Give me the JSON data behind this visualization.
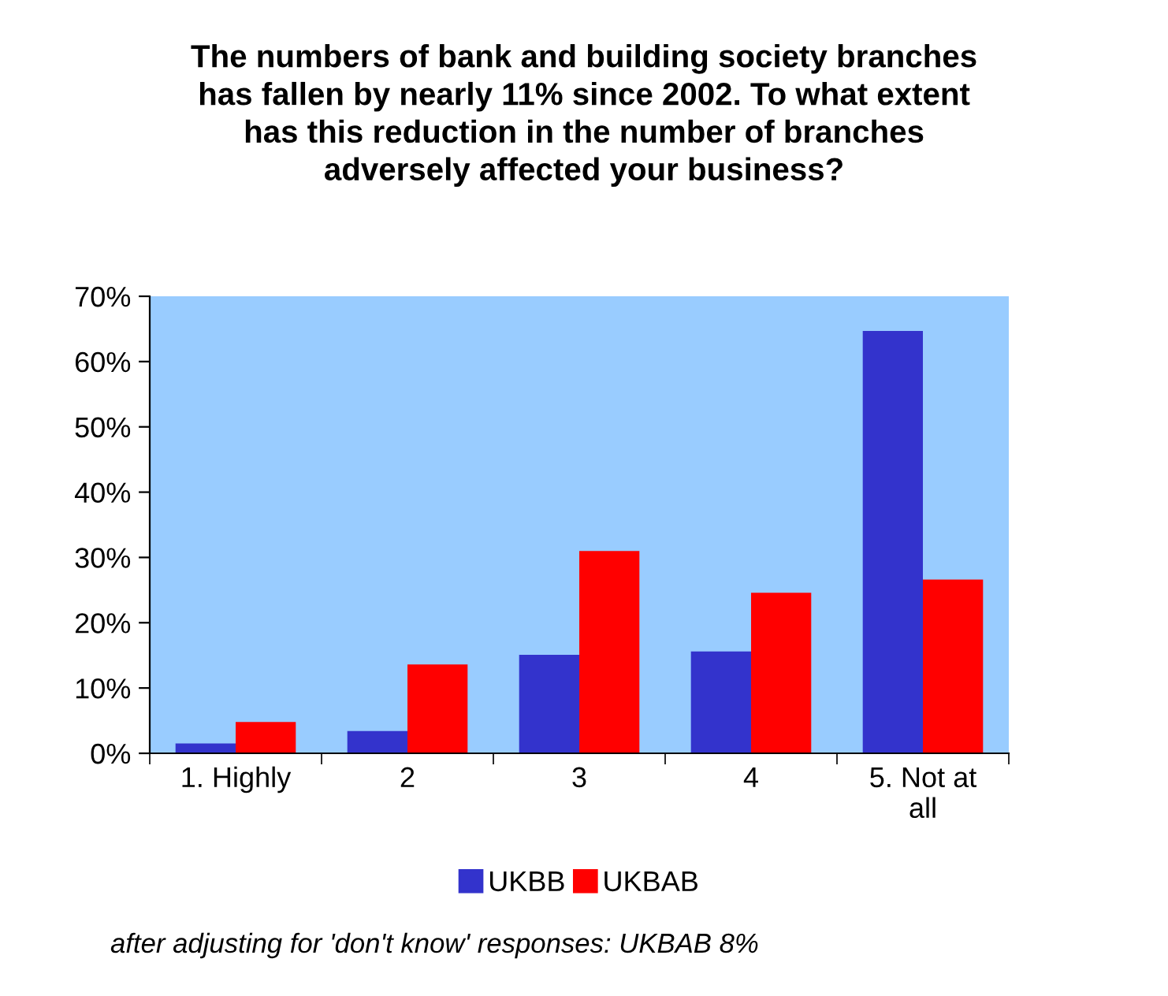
{
  "chart_data": {
    "type": "bar",
    "title": "The numbers of bank and building society branches\nhas fallen by nearly 11% since 2002. To what extent\nhas this reduction in the number of branches\nadversely affected your business?",
    "categories": [
      "1. Highly",
      "2",
      "3",
      "4",
      "5. Not at\nall"
    ],
    "series": [
      {
        "name": "UKBB",
        "color": "#3333cc",
        "values": [
          1.5,
          3.4,
          15.1,
          15.6,
          64.7
        ]
      },
      {
        "name": "UKBAB",
        "color": "#ff0000",
        "values": [
          4.8,
          13.6,
          31.0,
          24.6,
          26.6
        ]
      }
    ],
    "ylim": [
      0,
      70
    ],
    "yticks": [
      {
        "value": 0,
        "label": "0%"
      },
      {
        "value": 10,
        "label": "10%"
      },
      {
        "value": 20,
        "label": "20%"
      },
      {
        "value": 30,
        "label": "30%"
      },
      {
        "value": 40,
        "label": "40%"
      },
      {
        "value": 50,
        "label": "50%"
      },
      {
        "value": 60,
        "label": "60%"
      },
      {
        "value": 70,
        "label": "70%"
      }
    ],
    "legend": "bottom",
    "grid": false,
    "annotations": [
      "after adjusting for 'don't know' responses: UKBAB 8%"
    ]
  }
}
